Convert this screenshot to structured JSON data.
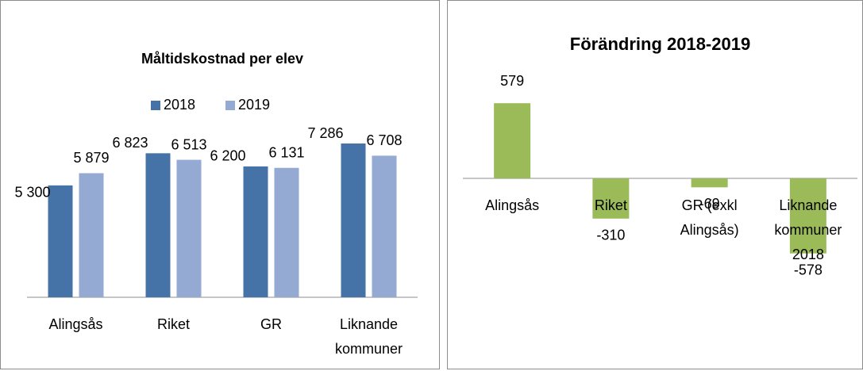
{
  "chart_data": [
    {
      "type": "bar",
      "title": "Måltidskostnad per elev",
      "categories": [
        "Alingsås",
        "Riket",
        "GR",
        "Liknande kommuner"
      ],
      "series": [
        {
          "name": "2018",
          "color": "#4572a7",
          "values": [
            5300,
            6823,
            6200,
            7286
          ],
          "value_labels": [
            "5 300",
            "6 823",
            "6 200",
            "7 286"
          ]
        },
        {
          "name": "2019",
          "color": "#95aad3",
          "values": [
            5879,
            6513,
            6131,
            6708
          ],
          "value_labels": [
            "5 879",
            "6 513",
            "6 131",
            "6 708"
          ]
        }
      ],
      "ylim": [
        0,
        8000
      ],
      "legend": "top"
    },
    {
      "type": "bar",
      "title": "Förändring 2018-2019",
      "categories": [
        "Alingsås",
        "Riket",
        "GR (exkl Alingsås)",
        "Liknande kommuner 2018"
      ],
      "values": [
        579,
        -310,
        -69,
        -578
      ],
      "color": "#9bbb59",
      "ylim": [
        -800,
        800
      ]
    }
  ]
}
